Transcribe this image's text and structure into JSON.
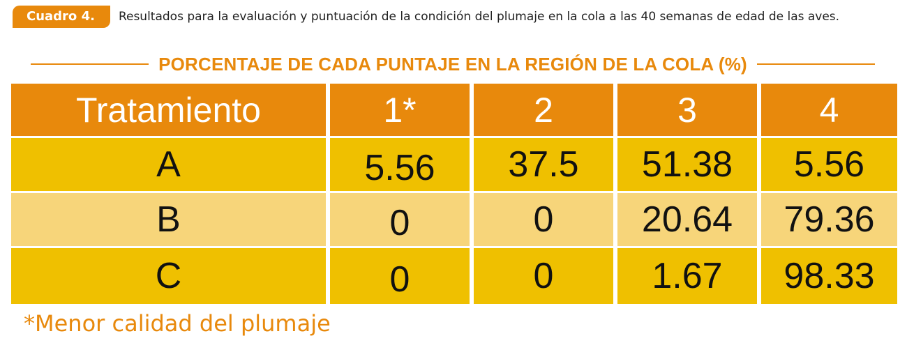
{
  "header": {
    "badge": "Cuadro 4.",
    "caption": "Resultados para la evaluación y puntuación de la condición del plumaje en la cola a las 40 semanas de edad de las aves."
  },
  "section_title": "PORCENTAJE DE CADA PUNTAJE EN LA REGIÓN DE LA COLA (%)",
  "table": {
    "headers": [
      "Tratamiento",
      "1*",
      "2",
      "3",
      "4"
    ],
    "rows": [
      [
        "A",
        "5.56",
        "37.5",
        "51.38",
        "5.56"
      ],
      [
        "B",
        "0",
        "0",
        "20.64",
        "79.36"
      ],
      [
        "C",
        "0",
        "0",
        "1.67",
        "98.33"
      ]
    ]
  },
  "footnote": "*Menor calidad del plumaje",
  "colors": {
    "accent": "#e8890c",
    "row_dark": "#efc000",
    "row_light": "#f7d57a"
  }
}
